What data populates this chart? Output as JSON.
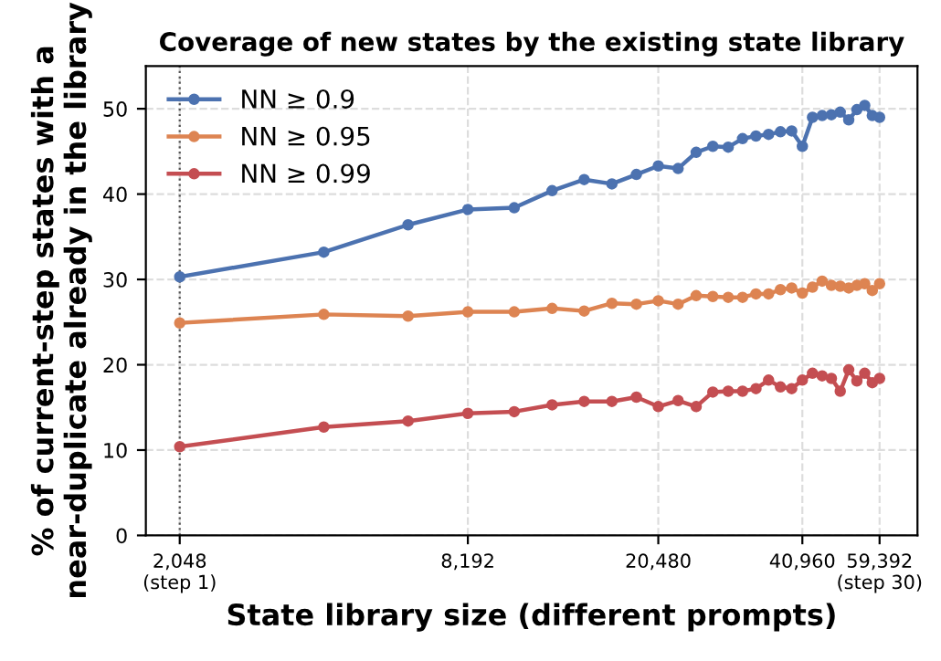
{
  "chart_data": {
    "type": "line",
    "title": "Coverage of new states by the existing state library",
    "xlabel": "State library size (different prompts)",
    "ylabel": "% of current-step states with a\nnear-duplicate already in the library",
    "x": [
      2048,
      4096,
      6144,
      8192,
      10240,
      12288,
      14336,
      16384,
      18432,
      20480,
      22528,
      24576,
      26624,
      28672,
      30720,
      32768,
      34816,
      36864,
      38912,
      40960,
      43008,
      45056,
      47104,
      49152,
      51200,
      53248,
      55296,
      57344,
      59392
    ],
    "series": [
      {
        "name": "NN ≥ 0.9",
        "color": "#4c72b0",
        "values": [
          30.3,
          33.2,
          36.4,
          38.2,
          38.4,
          40.4,
          41.7,
          41.2,
          42.3,
          43.3,
          43.0,
          44.9,
          45.6,
          45.5,
          46.5,
          46.8,
          47.0,
          47.3,
          47.4,
          45.6,
          49.0,
          49.2,
          49.3,
          49.6,
          48.7,
          49.9,
          50.4,
          49.2,
          49.0
        ]
      },
      {
        "name": "NN ≥ 0.95",
        "color": "#dd8452",
        "values": [
          24.9,
          25.9,
          25.7,
          26.2,
          26.2,
          26.6,
          26.3,
          27.2,
          27.1,
          27.5,
          27.1,
          28.1,
          28.0,
          27.9,
          27.9,
          28.3,
          28.3,
          28.8,
          29.0,
          28.4,
          29.1,
          29.8,
          29.3,
          29.2,
          29.0,
          29.3,
          29.5,
          28.7,
          29.5
        ]
      },
      {
        "name": "NN ≥ 0.99",
        "color": "#c44e52",
        "values": [
          10.4,
          12.7,
          13.4,
          14.3,
          14.5,
          15.3,
          15.7,
          15.7,
          16.2,
          15.1,
          15.8,
          15.1,
          16.8,
          16.9,
          16.9,
          17.2,
          18.2,
          17.4,
          17.2,
          18.2,
          19.0,
          18.7,
          18.4,
          16.9,
          19.4,
          18.1,
          19.0,
          17.9,
          18.4
        ]
      }
    ],
    "log": "x",
    "xlim": [
      1740,
      71270
    ],
    "xticks": [
      {
        "value": 2048,
        "label": "2,048\n(step 1)"
      },
      {
        "value": 8192,
        "label": "8,192"
      },
      {
        "value": 20480,
        "label": "20,480"
      },
      {
        "value": 40960,
        "label": "40,960"
      },
      {
        "value": 59392,
        "label": "59,392\n(step 30)"
      }
    ],
    "ylim": [
      0,
      55
    ],
    "yticks": [
      0,
      10,
      20,
      30,
      40,
      50
    ],
    "ref_lines": [
      {
        "axis": "x",
        "value": 2048,
        "color": "#555555",
        "line_style": "dotted"
      }
    ],
    "grid": true,
    "legend": "top left",
    "marker": "circle",
    "line_style": "solid"
  }
}
